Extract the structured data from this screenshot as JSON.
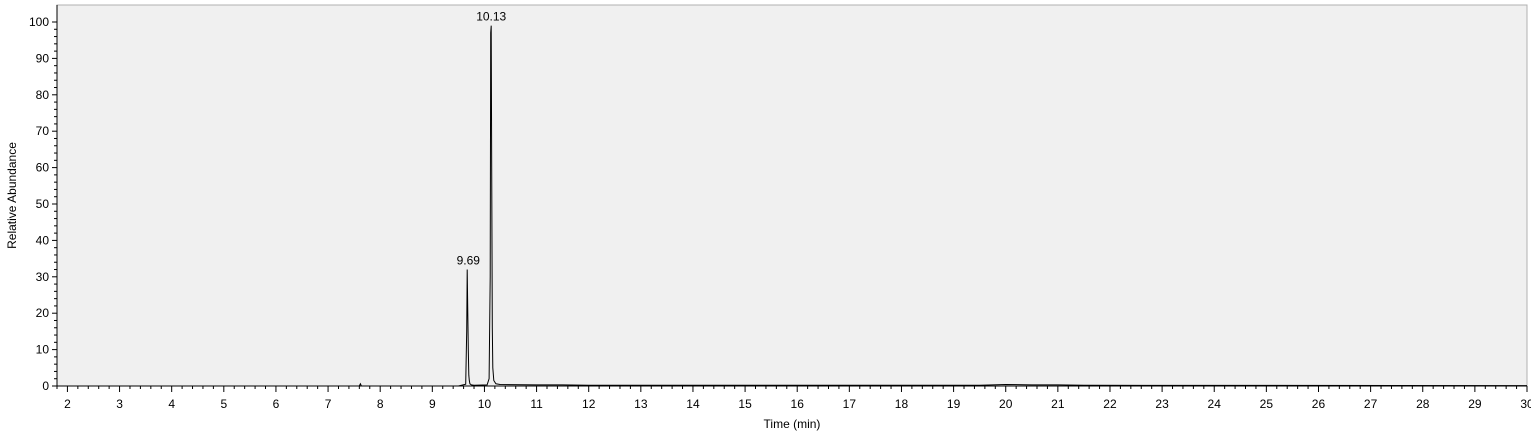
{
  "chart_data": {
    "type": "line",
    "xlabel": "Time (min)",
    "ylabel": "Relative Abundance",
    "xlim": [
      1.8,
      30
    ],
    "ylim": [
      0,
      100
    ],
    "x_ticks": [
      2,
      3,
      4,
      5,
      6,
      7,
      8,
      9,
      10,
      11,
      12,
      13,
      14,
      15,
      16,
      17,
      18,
      19,
      20,
      21,
      22,
      23,
      24,
      25,
      26,
      27,
      28,
      29,
      30
    ],
    "x_tick_labels": [
      "2",
      "3",
      "4",
      "5",
      "6",
      "7",
      "8",
      "9",
      "10",
      "11",
      "12",
      "13",
      "14",
      "15",
      "16",
      "17",
      "18",
      "19",
      "20",
      "21",
      "22",
      "23",
      "24",
      "25",
      "26",
      "27",
      "28",
      "29",
      "30"
    ],
    "y_ticks": [
      0,
      10,
      20,
      30,
      40,
      50,
      60,
      70,
      80,
      90,
      100
    ],
    "y_tick_labels": [
      "0",
      "10",
      "20",
      "30",
      "40",
      "50",
      "60",
      "70",
      "80",
      "90",
      "100"
    ],
    "grid": false,
    "plot_background": "#f0f0f0",
    "line_color": "#000000",
    "series": [
      {
        "x": [
          1.8,
          7.6,
          7.62,
          7.64,
          9.5,
          9.64,
          9.66,
          9.67,
          9.68,
          9.69,
          9.7,
          9.71,
          9.72,
          9.75,
          9.8,
          10.05,
          10.09,
          10.11,
          10.12,
          10.13,
          10.14,
          10.15,
          10.16,
          10.18,
          10.22,
          10.3,
          11.0,
          11.5,
          12.0,
          19.5,
          20.0,
          20.5,
          21.0,
          21.5,
          30.0
        ],
        "y": [
          0,
          0,
          0.6,
          0,
          0,
          0.5,
          15,
          32,
          20,
          10,
          3,
          1.5,
          0.6,
          0.3,
          0.2,
          0.3,
          2,
          30,
          97,
          99,
          60,
          16,
          5,
          1.5,
          0.6,
          0.4,
          0.3,
          0.3,
          0.2,
          0.2,
          0.4,
          0.3,
          0.3,
          0.2,
          0.1
        ]
      }
    ],
    "annotations": [
      {
        "x": 9.69,
        "y": 32,
        "text": "9.69"
      },
      {
        "x": 10.13,
        "y": 99,
        "text": "10.13"
      }
    ]
  }
}
